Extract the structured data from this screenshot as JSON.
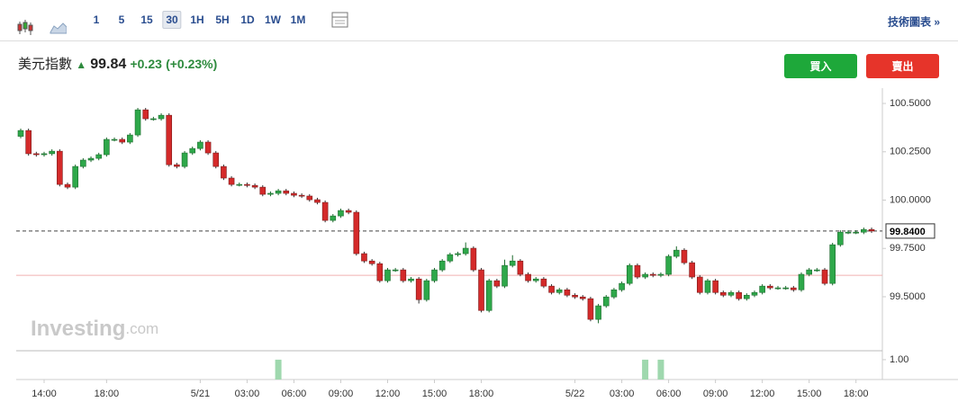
{
  "toolbar": {
    "intervals": [
      "1",
      "5",
      "15",
      "30",
      "1H",
      "5H",
      "1D",
      "1W",
      "1M"
    ],
    "selected_interval": 3,
    "link": "技術圖表 »"
  },
  "header": {
    "name": "美元指數",
    "price": "99.84",
    "change": "+0.23",
    "change_pct": "(+0.23%)",
    "buy": "買入",
    "sell": "賣出"
  },
  "chart_data": {
    "type": "candlestick",
    "categories": [
      null,
      null,
      null,
      "14:00",
      null,
      null,
      null,
      null,
      null,
      null,
      null,
      "18:00",
      null,
      null,
      null,
      null,
      null,
      null,
      null,
      null,
      null,
      null,
      null,
      "5/21",
      null,
      null,
      null,
      null,
      null,
      "03:00",
      null,
      null,
      null,
      null,
      null,
      "06:00",
      null,
      null,
      null,
      null,
      null,
      "09:00",
      null,
      null,
      null,
      null,
      null,
      "12:00",
      null,
      null,
      null,
      null,
      null,
      "15:00",
      null,
      null,
      null,
      null,
      null,
      "18:00",
      null,
      null,
      null,
      null,
      null,
      null,
      null,
      null,
      null,
      null,
      null,
      "5/22",
      null,
      null,
      null,
      null,
      null,
      "03:00",
      null,
      null,
      null,
      null,
      null,
      "06:00",
      null,
      null,
      null,
      null,
      null,
      "09:00",
      null,
      null,
      null,
      null,
      null,
      "12:00",
      null,
      null,
      null,
      null,
      null,
      "15:00",
      null,
      null,
      null,
      null,
      null,
      "18:00",
      null,
      null
    ],
    "open": [
      100.33,
      100.36,
      100.24,
      100.235,
      100.24,
      100.253,
      100.081,
      100.067,
      100.174,
      100.207,
      100.216,
      100.235,
      100.314,
      100.314,
      100.3,
      100.337,
      100.467,
      100.421,
      100.421,
      100.439,
      100.183,
      100.174,
      100.244,
      100.267,
      100.3,
      100.244,
      100.174,
      100.114,
      100.081,
      100.081,
      100.076,
      100.067,
      100.03,
      100.035,
      100.048,
      100.035,
      100.025,
      100.021,
      100.002,
      99.988,
      99.895,
      99.918,
      99.946,
      99.937,
      99.723,
      99.685,
      99.671,
      99.583,
      99.639,
      99.639,
      99.583,
      99.592,
      99.485,
      99.583,
      99.639,
      99.685,
      99.718,
      99.723,
      99.751,
      99.639,
      99.429,
      99.583,
      99.555,
      99.662,
      99.685,
      99.616,
      99.583,
      99.592,
      99.555,
      99.522,
      99.536,
      99.508,
      99.499,
      99.49,
      99.383,
      99.453,
      99.499,
      99.536,
      99.569,
      99.662,
      99.602,
      99.616,
      99.611,
      99.616,
      99.709,
      99.741,
      99.676,
      99.602,
      99.522,
      99.583,
      99.522,
      99.508,
      99.522,
      99.49,
      99.508,
      99.522,
      99.555,
      99.546,
      99.546,
      99.546,
      99.536,
      99.616,
      99.639,
      99.639,
      99.569,
      99.769,
      99.834,
      99.834,
      99.834,
      99.848
    ],
    "high": [
      100.37,
      100.37,
      100.25,
      100.25,
      100.263,
      100.263,
      100.091,
      100.184,
      100.217,
      100.226,
      100.245,
      100.324,
      100.324,
      100.324,
      100.347,
      100.477,
      100.477,
      100.431,
      100.449,
      100.449,
      100.193,
      100.254,
      100.277,
      100.31,
      100.31,
      100.254,
      100.184,
      100.124,
      100.091,
      100.091,
      100.086,
      100.077,
      100.045,
      100.058,
      100.058,
      100.045,
      100.035,
      100.031,
      100.012,
      99.998,
      99.928,
      99.956,
      99.956,
      99.947,
      99.733,
      99.695,
      99.681,
      99.649,
      99.649,
      99.649,
      99.602,
      99.602,
      99.593,
      99.649,
      99.695,
      99.728,
      99.733,
      99.781,
      99.761,
      99.649,
      99.593,
      99.593,
      99.692,
      99.715,
      99.695,
      99.626,
      99.602,
      99.602,
      99.565,
      99.546,
      99.546,
      99.518,
      99.509,
      99.5,
      99.463,
      99.509,
      99.546,
      99.579,
      99.672,
      99.672,
      99.626,
      99.626,
      99.626,
      99.719,
      99.761,
      99.751,
      99.686,
      99.612,
      99.593,
      99.593,
      99.532,
      99.532,
      99.532,
      99.518,
      99.532,
      99.565,
      99.565,
      99.556,
      99.556,
      99.556,
      99.626,
      99.649,
      99.649,
      99.649,
      99.779,
      99.844,
      99.844,
      99.844,
      99.858,
      99.858
    ],
    "low": [
      100.32,
      100.23,
      100.225,
      100.225,
      100.23,
      100.071,
      100.057,
      100.057,
      100.164,
      100.197,
      100.206,
      100.225,
      100.304,
      100.29,
      100.29,
      100.327,
      100.411,
      100.411,
      100.411,
      100.173,
      100.164,
      100.164,
      100.234,
      100.257,
      100.234,
      100.164,
      100.104,
      100.071,
      100.071,
      100.066,
      100.057,
      100.02,
      100.02,
      100.025,
      100.025,
      100.015,
      100.011,
      99.992,
      99.978,
      99.885,
      99.885,
      99.908,
      99.927,
      99.713,
      99.675,
      99.661,
      99.573,
      99.573,
      99.629,
      99.573,
      99.573,
      99.465,
      99.475,
      99.573,
      99.629,
      99.675,
      99.708,
      99.713,
      99.629,
      99.419,
      99.419,
      99.545,
      99.545,
      99.652,
      99.606,
      99.573,
      99.573,
      99.545,
      99.512,
      99.512,
      99.498,
      99.489,
      99.48,
      99.373,
      99.363,
      99.443,
      99.489,
      99.526,
      99.559,
      99.592,
      99.592,
      99.601,
      99.601,
      99.606,
      99.699,
      99.666,
      99.592,
      99.512,
      99.512,
      99.512,
      99.498,
      99.498,
      99.48,
      99.48,
      99.498,
      99.512,
      99.536,
      99.536,
      99.536,
      99.526,
      99.526,
      99.606,
      99.629,
      99.559,
      99.559,
      99.759,
      99.824,
      99.824,
      99.824,
      99.83
    ],
    "close": [
      100.36,
      100.24,
      100.235,
      100.24,
      100.253,
      100.081,
      100.067,
      100.174,
      100.207,
      100.216,
      100.235,
      100.314,
      100.314,
      100.3,
      100.337,
      100.467,
      100.421,
      100.421,
      100.439,
      100.183,
      100.174,
      100.244,
      100.267,
      100.3,
      100.244,
      100.174,
      100.114,
      100.081,
      100.081,
      100.076,
      100.067,
      100.03,
      100.035,
      100.048,
      100.035,
      100.025,
      100.021,
      100.002,
      99.988,
      99.895,
      99.918,
      99.946,
      99.937,
      99.723,
      99.685,
      99.671,
      99.583,
      99.639,
      99.639,
      99.583,
      99.592,
      99.485,
      99.583,
      99.639,
      99.685,
      99.718,
      99.723,
      99.751,
      99.639,
      99.429,
      99.583,
      99.555,
      99.662,
      99.685,
      99.616,
      99.583,
      99.592,
      99.555,
      99.522,
      99.536,
      99.508,
      99.499,
      99.49,
      99.383,
      99.453,
      99.499,
      99.536,
      99.569,
      99.662,
      99.602,
      99.616,
      99.611,
      99.616,
      99.709,
      99.741,
      99.676,
      99.602,
      99.522,
      99.583,
      99.522,
      99.508,
      99.522,
      99.49,
      99.508,
      99.522,
      99.555,
      99.546,
      99.546,
      99.546,
      99.536,
      99.616,
      99.639,
      99.639,
      99.569,
      99.769,
      99.834,
      99.834,
      99.834,
      99.848,
      99.84
    ],
    "volume": [
      0,
      0,
      0,
      0,
      0,
      0,
      0,
      0,
      0,
      0,
      0,
      0,
      0,
      0,
      0,
      0,
      0,
      0,
      0,
      0,
      0,
      0,
      0,
      0,
      0,
      0,
      0,
      0,
      0,
      0,
      0,
      0,
      0,
      1,
      0,
      0,
      0,
      0,
      0,
      0,
      0,
      0,
      0,
      0,
      0,
      0,
      0,
      0,
      0,
      0,
      0,
      0,
      0,
      0,
      0,
      0,
      0,
      0,
      0,
      0,
      0,
      0,
      0,
      0,
      0,
      0,
      0,
      0,
      0,
      0,
      0,
      0,
      0,
      0,
      0,
      0,
      0,
      0,
      0,
      0,
      1,
      0,
      1,
      0,
      0,
      0,
      0,
      0,
      0,
      0,
      0,
      0,
      0,
      0,
      0,
      0,
      0,
      0,
      0,
      0,
      0,
      0,
      0,
      0,
      0,
      0,
      0,
      0,
      0,
      0
    ],
    "up_color": "#2ea84a",
    "down_color": "#d42a2a",
    "volume_color": "#9fd8ae",
    "ylim": [
      99.23,
      100.57
    ],
    "yticks": [
      {
        "value": 100.5,
        "label": "100.5000"
      },
      {
        "value": 100.25,
        "label": "100.2500"
      },
      {
        "value": 100,
        "label": "100.0000"
      },
      {
        "value": 99.75,
        "label": "99.7500"
      },
      {
        "value": 99.5,
        "label": "99.5000"
      }
    ],
    "vlim": [
      0,
      1.45
    ],
    "vticks": [
      {
        "value": 1,
        "label": "1.00"
      }
    ],
    "last_price": {
      "value": 99.84,
      "label": "99.8400"
    },
    "reference_line": 99.611,
    "grid": false,
    "watermark": [
      "Investing",
      ".com"
    ]
  }
}
